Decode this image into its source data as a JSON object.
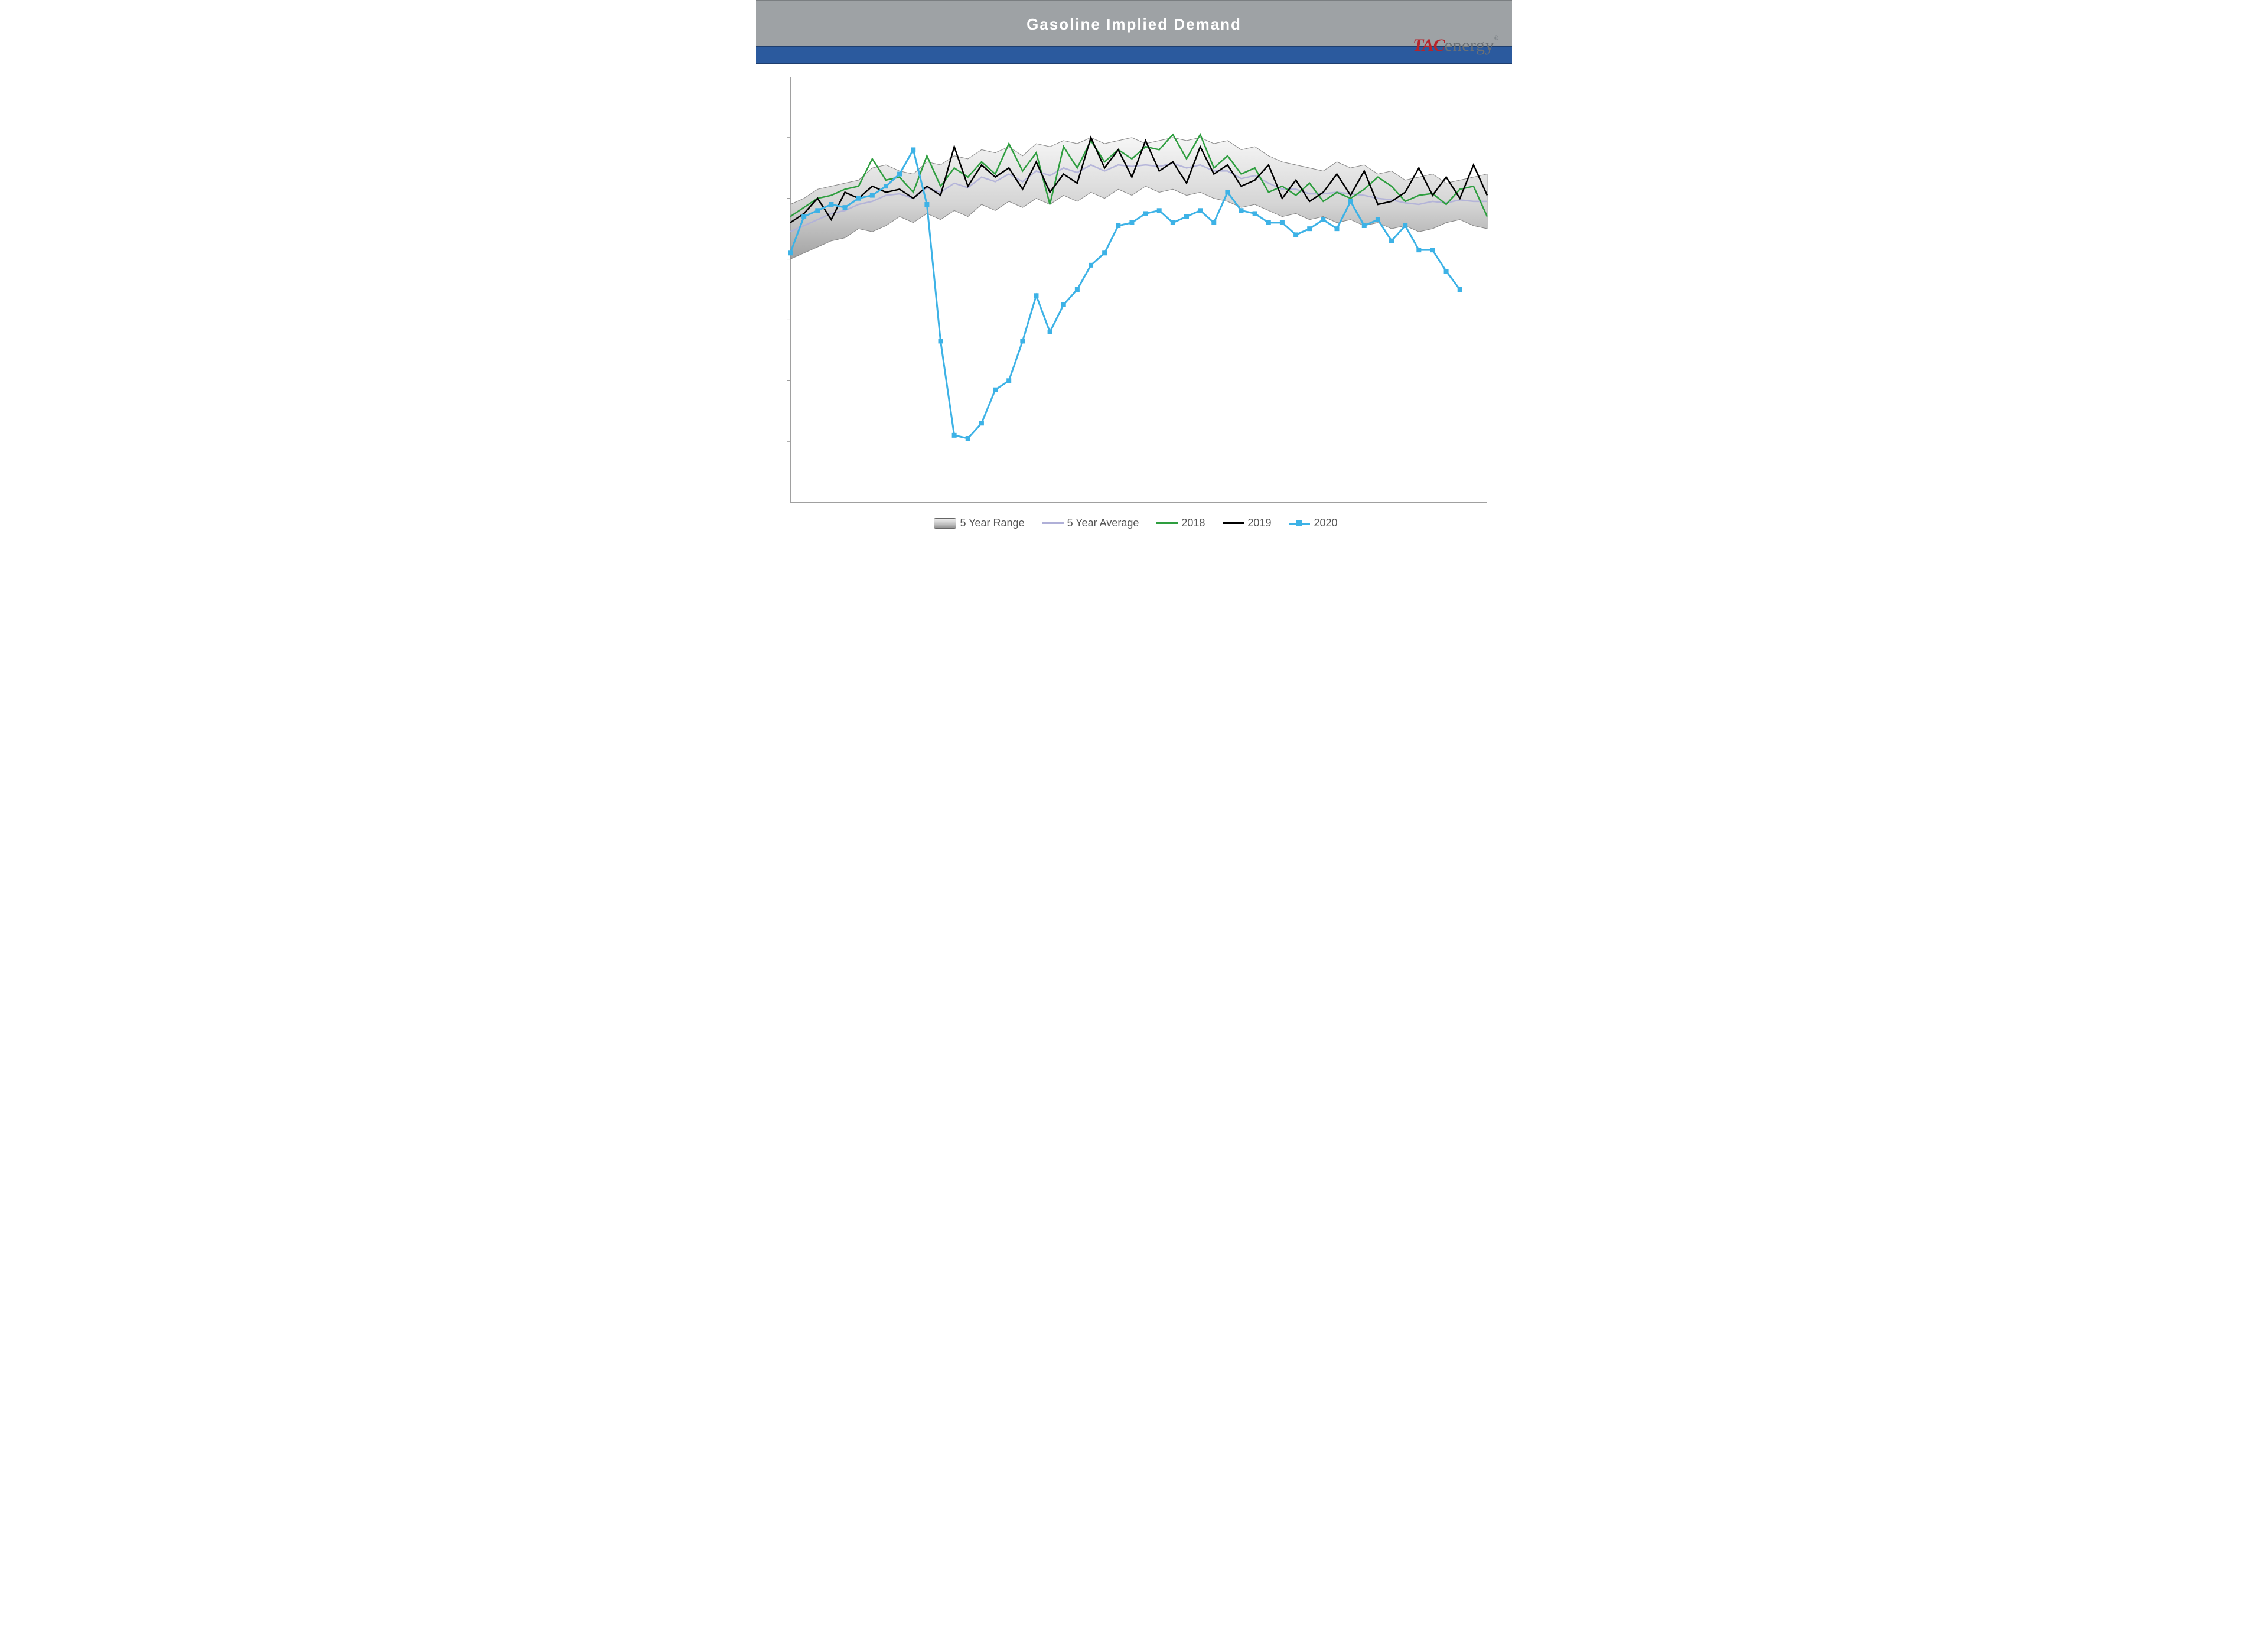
{
  "title": "Gasoline Implied Demand",
  "logo": {
    "tac": "TAC",
    "rest": "energy",
    "reg": "®"
  },
  "chart": {
    "type": "line",
    "x_count": 52,
    "ylim": [
      4000,
      11000
    ],
    "y_gridlines": [
      5000,
      6000,
      7000,
      8000,
      9000,
      10000
    ],
    "plot_bg": "#ffffff",
    "axis_color": "#808080",
    "grid_color": "#d9d9d9",
    "range_fill_top": "#e8e8e8",
    "range_fill_bottom": "#a8a8a8",
    "range_stroke": "#888888",
    "avg_color": "#b0b0d8",
    "s2018_color": "#2e9e3f",
    "s2019_color": "#000000",
    "s2020_color": "#3db2e6",
    "line_width": 2.5,
    "line_width_2020": 3,
    "marker_size": 8,
    "legend": {
      "range": "5 Year Range",
      "avg": "5 Year Average",
      "s2018": "2018",
      "s2019": "2019",
      "s2020": "2020"
    },
    "range_high": [
      8900,
      9000,
      9150,
      9200,
      9250,
      9300,
      9500,
      9550,
      9450,
      9400,
      9600,
      9550,
      9700,
      9650,
      9800,
      9750,
      9850,
      9700,
      9900,
      9850,
      9950,
      9900,
      10000,
      9900,
      9950,
      10000,
      9900,
      9950,
      10000,
      9950,
      10000,
      9900,
      9950,
      9800,
      9850,
      9700,
      9600,
      9550,
      9500,
      9450,
      9600,
      9500,
      9550,
      9400,
      9450,
      9300,
      9350,
      9400,
      9250,
      9300,
      9350,
      9400
    ],
    "range_low": [
      8000,
      8100,
      8200,
      8300,
      8350,
      8500,
      8450,
      8550,
      8700,
      8600,
      8750,
      8650,
      8800,
      8700,
      8900,
      8800,
      8950,
      8850,
      9000,
      8900,
      9050,
      8950,
      9100,
      9000,
      9150,
      9050,
      9200,
      9100,
      9150,
      9050,
      9100,
      9000,
      8950,
      8850,
      8900,
      8800,
      8700,
      8750,
      8650,
      8700,
      8600,
      8650,
      8550,
      8600,
      8500,
      8550,
      8450,
      8500,
      8600,
      8650,
      8550,
      8500
    ],
    "avg": [
      8450,
      8550,
      8650,
      8750,
      8800,
      8900,
      8950,
      9050,
      9075,
      9000,
      9175,
      9100,
      9250,
      9175,
      9350,
      9275,
      9400,
      9275,
      9450,
      9375,
      9500,
      9425,
      9550,
      9450,
      9550,
      9525,
      9550,
      9525,
      9575,
      9500,
      9550,
      9450,
      9450,
      9325,
      9375,
      9250,
      9150,
      9150,
      9075,
      9075,
      9100,
      9075,
      9050,
      9000,
      8975,
      8925,
      8900,
      8950,
      8925,
      8975,
      8950,
      8950
    ],
    "s2018": [
      8700,
      8850,
      9000,
      9050,
      9150,
      9200,
      9650,
      9300,
      9350,
      9100,
      9700,
      9200,
      9500,
      9350,
      9600,
      9400,
      9900,
      9450,
      9750,
      8900,
      9850,
      9500,
      9950,
      9600,
      9800,
      9650,
      9850,
      9800,
      10050,
      9650,
      10050,
      9500,
      9700,
      9400,
      9500,
      9100,
      9200,
      9050,
      9250,
      8950,
      9100,
      9000,
      9150,
      9350,
      9200,
      8950,
      9050,
      9080,
      8900,
      9150,
      9200,
      8700
    ],
    "s2019": [
      8600,
      8750,
      9000,
      8650,
      9100,
      9000,
      9200,
      9100,
      9150,
      9000,
      9200,
      9050,
      9850,
      9200,
      9550,
      9350,
      9500,
      9150,
      9600,
      9100,
      9400,
      9250,
      10000,
      9500,
      9800,
      9350,
      9950,
      9450,
      9600,
      9250,
      9850,
      9400,
      9550,
      9200,
      9300,
      9550,
      9000,
      9300,
      8950,
      9100,
      9400,
      9050,
      9450,
      8900,
      8950,
      9100,
      9500,
      9050,
      9350,
      9000,
      9550,
      9050
    ],
    "s2020": [
      8100,
      8700,
      8800,
      8900,
      8850,
      9000,
      9050,
      9200,
      9400,
      9800,
      8900,
      6650,
      5100,
      5050,
      5300,
      5850,
      6000,
      6650,
      7400,
      6800,
      7250,
      7500,
      7900,
      8100,
      8550,
      8600,
      8750,
      8800,
      8600,
      8700,
      8800,
      8600,
      9100,
      8800,
      8750,
      8600,
      8600,
      8400,
      8500,
      8650,
      8500,
      8950,
      8550,
      8650,
      8300,
      8550,
      8150,
      8150,
      7800,
      7500
    ]
  }
}
